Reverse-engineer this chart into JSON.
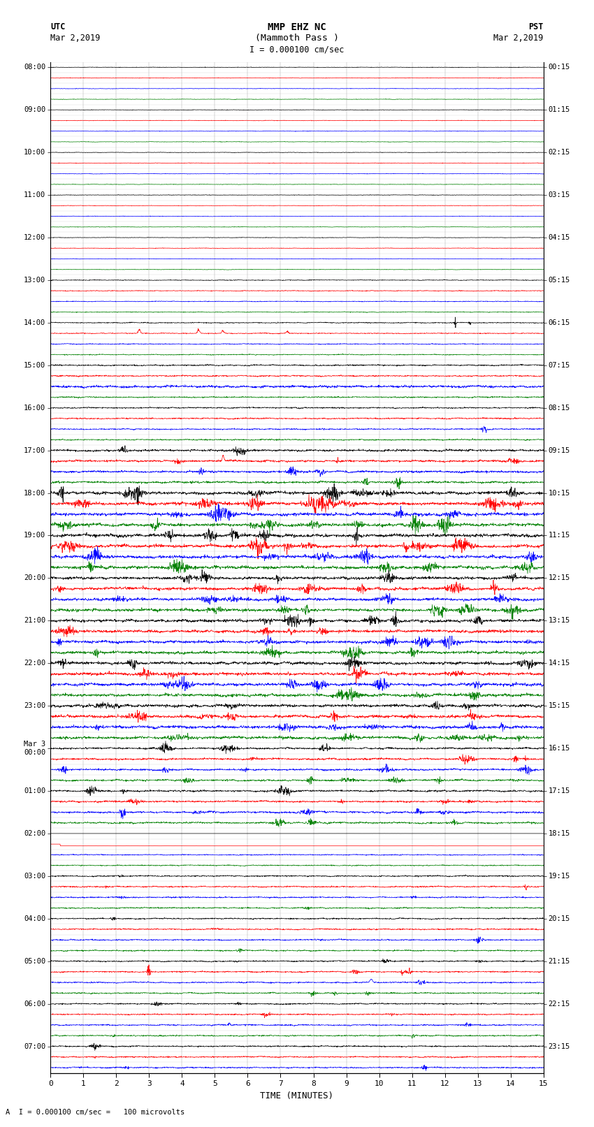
{
  "title_line1": "MMP EHZ NC",
  "title_line2": "(Mammoth Pass )",
  "scale_label": "I = 0.000100 cm/sec",
  "bottom_label": "A  I = 0.000100 cm/sec =   100 microvolts",
  "utc_label_line1": "UTC",
  "utc_label_line2": "Mar 2,2019",
  "pst_label_line1": "PST",
  "pst_label_line2": "Mar 2,2019",
  "xlabel": "TIME (MINUTES)",
  "left_times_utc": [
    "08:00",
    "",
    "",
    "",
    "09:00",
    "",
    "",
    "",
    "10:00",
    "",
    "",
    "",
    "11:00",
    "",
    "",
    "",
    "12:00",
    "",
    "",
    "",
    "13:00",
    "",
    "",
    "",
    "14:00",
    "",
    "",
    "",
    "15:00",
    "",
    "",
    "",
    "16:00",
    "",
    "",
    "",
    "17:00",
    "",
    "",
    "",
    "18:00",
    "",
    "",
    "",
    "19:00",
    "",
    "",
    "",
    "20:00",
    "",
    "",
    "",
    "21:00",
    "",
    "",
    "",
    "22:00",
    "",
    "",
    "",
    "23:00",
    "",
    "",
    "",
    "Mar 3\n00:00",
    "",
    "",
    "",
    "01:00",
    "",
    "",
    "",
    "02:00",
    "",
    "",
    "",
    "03:00",
    "",
    "",
    "",
    "04:00",
    "",
    "",
    "",
    "05:00",
    "",
    "",
    "",
    "06:00",
    "",
    "",
    "",
    "07:00",
    "",
    ""
  ],
  "right_times_pst": [
    "00:15",
    "",
    "",
    "",
    "01:15",
    "",
    "",
    "",
    "02:15",
    "",
    "",
    "",
    "03:15",
    "",
    "",
    "",
    "04:15",
    "",
    "",
    "",
    "05:15",
    "",
    "",
    "",
    "06:15",
    "",
    "",
    "",
    "07:15",
    "",
    "",
    "",
    "08:15",
    "",
    "",
    "",
    "09:15",
    "",
    "",
    "",
    "10:15",
    "",
    "",
    "",
    "11:15",
    "",
    "",
    "",
    "12:15",
    "",
    "",
    "",
    "13:15",
    "",
    "",
    "",
    "14:15",
    "",
    "",
    "",
    "15:15",
    "",
    "",
    "",
    "16:15",
    "",
    "",
    "",
    "17:15",
    "",
    "",
    "",
    "18:15",
    "",
    "",
    "",
    "19:15",
    "",
    "",
    "",
    "20:15",
    "",
    "",
    "",
    "21:15",
    "",
    "",
    "",
    "22:15",
    "",
    "",
    "",
    "23:15",
    "",
    ""
  ],
  "n_traces": 95,
  "trace_colors_pattern": [
    "black",
    "red",
    "blue",
    "green"
  ],
  "minutes": 15,
  "bg_color": "#ffffff",
  "grid_color": "#777777",
  "trace_linewidth": 0.5,
  "noise_seed": 12345
}
